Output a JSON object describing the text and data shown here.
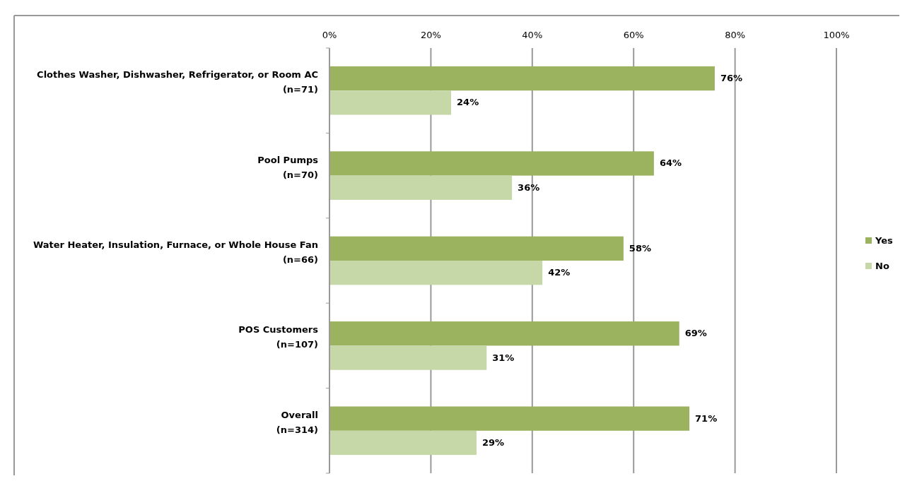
{
  "chart_data": {
    "type": "bar",
    "orientation": "horizontal",
    "categories": [
      "Clothes Washer, Dishwasher, Refrigerator, or Room AC\n(n=71)",
      "Pool Pumps\n(n=70)",
      "Water Heater, Insulation, Furnace, or Whole House Fan\n(n=66)",
      "POS Customers\n(n=107)",
      "Overall\n(n=314)"
    ],
    "series": [
      {
        "name": "Yes",
        "color": "#9bb35e",
        "values": [
          76,
          64,
          58,
          69,
          71
        ]
      },
      {
        "name": "No",
        "color": "#c6d7a8",
        "values": [
          24,
          36,
          42,
          31,
          29
        ]
      }
    ],
    "xlim": [
      0,
      100
    ],
    "xticks": [
      {
        "value": 0,
        "label": "0%"
      },
      {
        "value": 20,
        "label": "20%"
      },
      {
        "value": 40,
        "label": "40%"
      },
      {
        "value": 60,
        "label": "60%"
      },
      {
        "value": 80,
        "label": "80%"
      },
      {
        "value": 100,
        "label": "100%"
      }
    ],
    "value_labels": [
      [
        "76%",
        "64%",
        "58%",
        "69%",
        "71%"
      ],
      [
        "24%",
        "36%",
        "42%",
        "31%",
        "29%"
      ]
    ],
    "grid": "x",
    "legend": "right"
  }
}
